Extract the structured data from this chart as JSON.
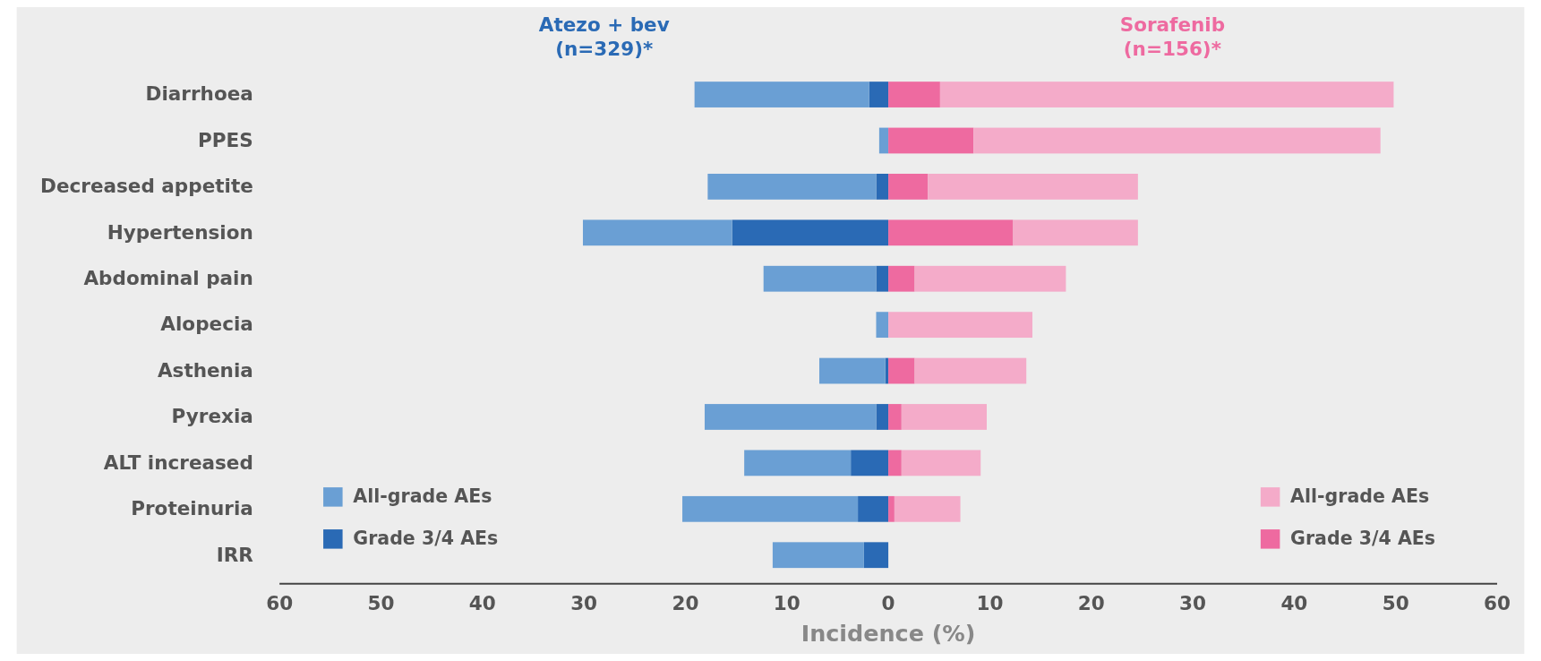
{
  "chart_data": {
    "type": "bar",
    "orientation": "horizontal",
    "stacked": true,
    "xlabel": "Incidence (%)",
    "categories": [
      "Diarrhoea",
      "PPES",
      "Decreased appetite",
      "Hypertension",
      "Abdominal pain",
      "Alopecia",
      "Asthenia",
      "Pyrexia",
      "ALT increased",
      "Proteinuria",
      "IRR"
    ],
    "series": [
      {
        "name": "Grade 3/4 AEs",
        "color": "#2a6ab5",
        "values": [
          -1.9,
          0,
          -1.2,
          -15.4,
          -1.2,
          0,
          -0.3,
          -1.2,
          -3.7,
          -3.0,
          -2.4
        ]
      },
      {
        "name": "All-grade AEs",
        "color": "#6a9fd4",
        "values": [
          -17.2,
          -0.9,
          -16.6,
          -14.7,
          -11.1,
          -1.2,
          -6.5,
          -16.9,
          -10.5,
          -17.3,
          -9.0
        ]
      },
      {
        "name": "Grade 3/4 AEs",
        "color": "#ee6aa0",
        "values": [
          5.1,
          8.4,
          3.9,
          12.3,
          2.6,
          0,
          2.6,
          1.3,
          1.3,
          0.6,
          null
        ]
      },
      {
        "name": "All-grade AEs",
        "color": "#f4abc9",
        "values": [
          44.7,
          40.1,
          20.7,
          12.3,
          14.9,
          14.2,
          11.0,
          8.4,
          7.8,
          6.5,
          null
        ]
      }
    ],
    "xlim": [
      -60,
      60
    ],
    "xticks": [
      {
        "value": -60,
        "label": "60"
      },
      {
        "value": -50,
        "label": "50"
      },
      {
        "value": -40,
        "label": "40"
      },
      {
        "value": -30,
        "label": "30"
      },
      {
        "value": -20,
        "label": "20"
      },
      {
        "value": -10,
        "label": "10"
      },
      0,
      10,
      20,
      30,
      40,
      50,
      60
    ],
    "annotations": [
      "Atezo + bev\n(n=329)*",
      "Sorafenib\n(n=156)*"
    ],
    "legend": "bottom"
  }
}
